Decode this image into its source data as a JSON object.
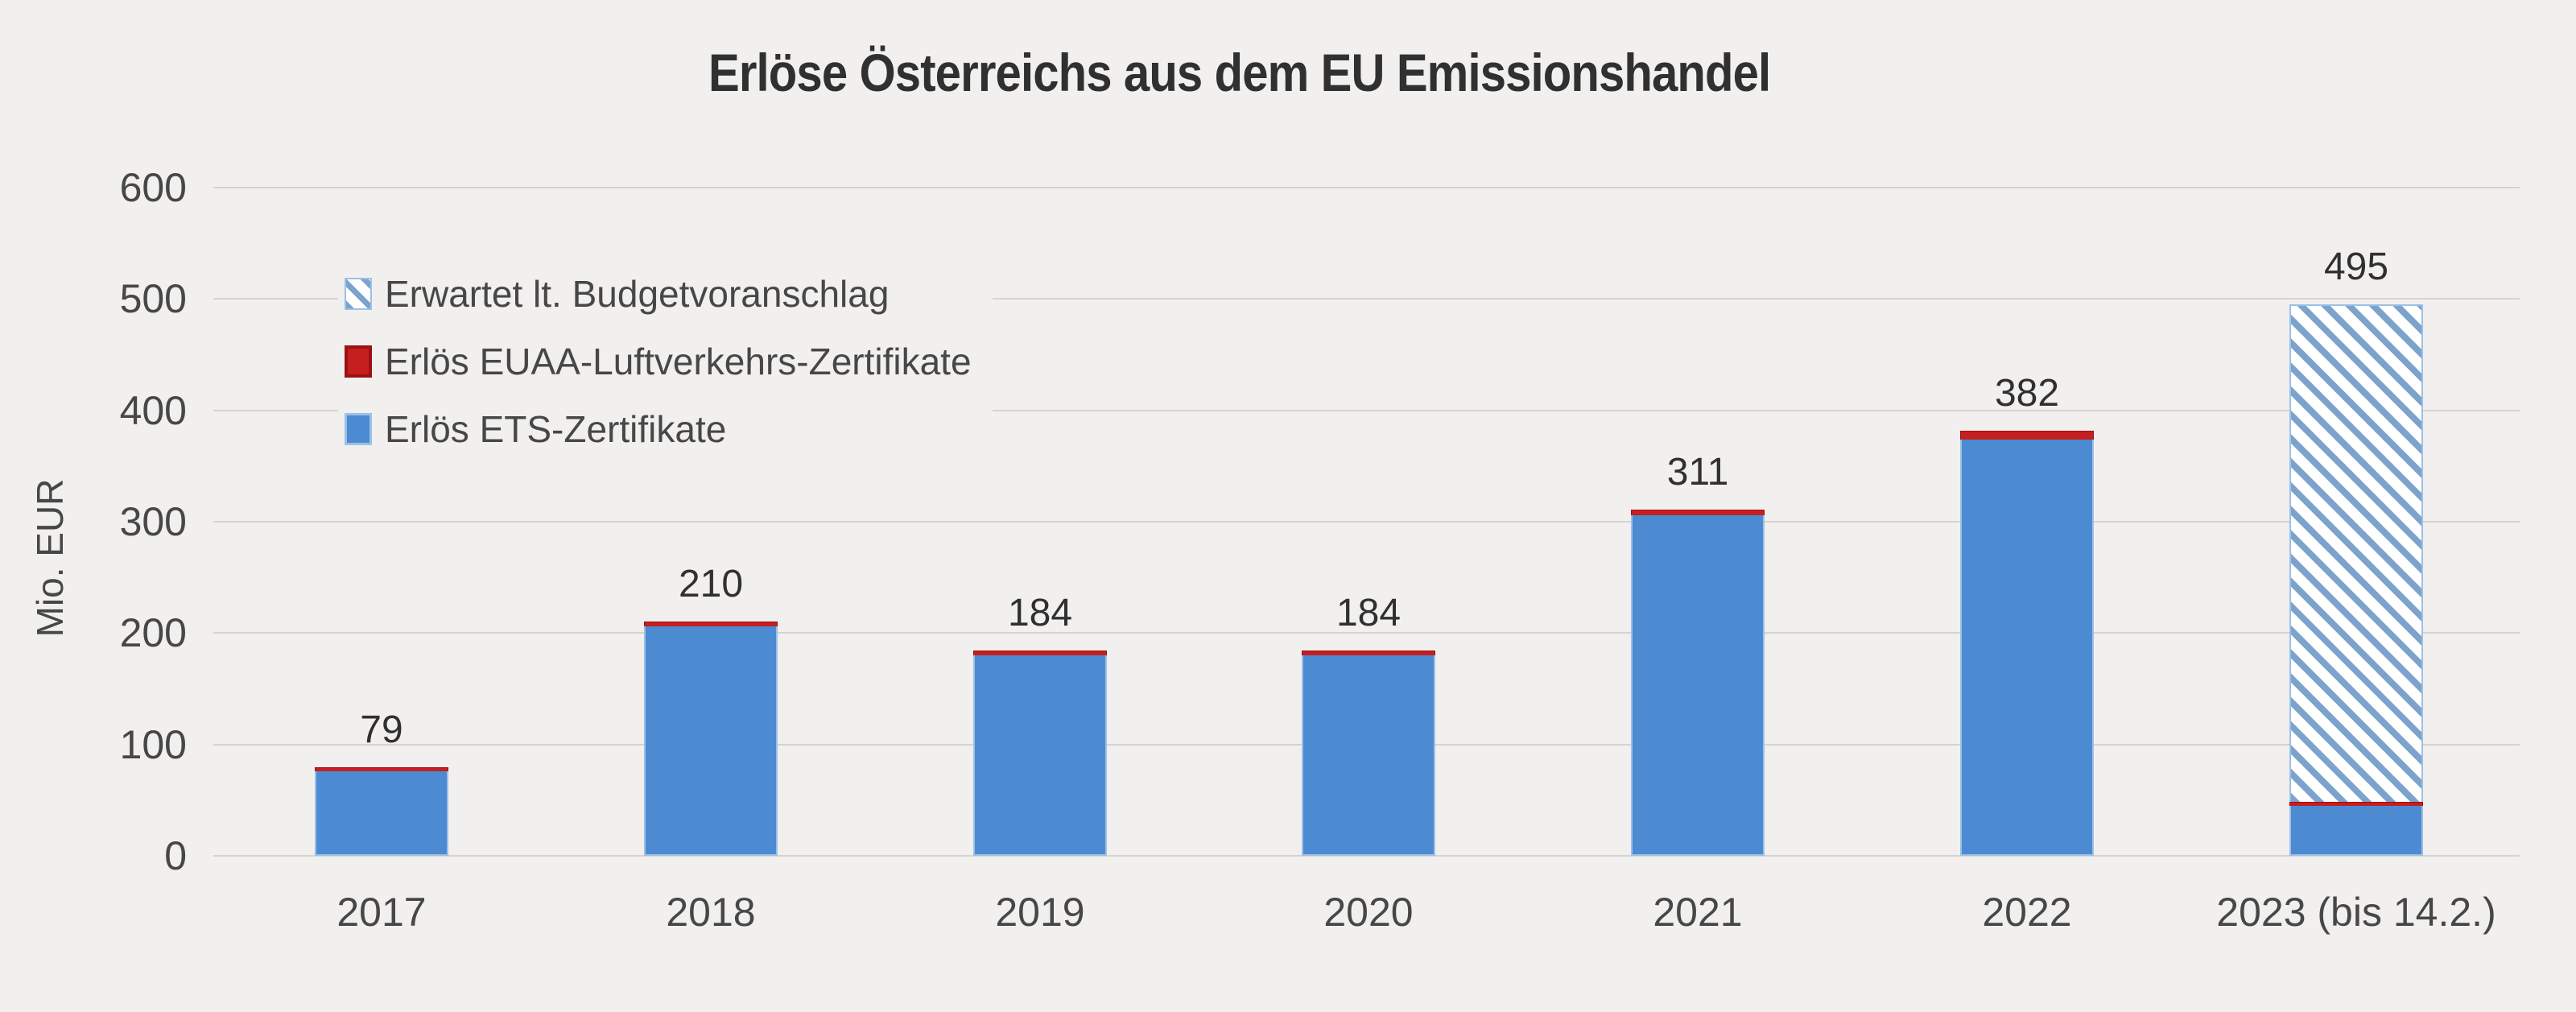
{
  "title": "Erlöse Österreichs aus dem EU Emissionshandel",
  "y_axis": {
    "label": "Mio. EUR",
    "ticks": [
      "600",
      "500",
      "400",
      "300",
      "200",
      "100",
      "0"
    ],
    "tick_values": [
      600,
      500,
      400,
      300,
      200,
      100,
      0
    ]
  },
  "legend": {
    "items": [
      {
        "label": "Erwartet lt. Budgetvoranschlag",
        "swatch": "hatched-blue"
      },
      {
        "label": "Erlös EUAA-Luftverkehrs-Zertifikate",
        "swatch": "red"
      },
      {
        "label": "Erlös ETS-Zertifikate",
        "swatch": "blue"
      }
    ]
  },
  "chart_data": {
    "type": "bar",
    "stacked": true,
    "title": "Erlöse Österreichs aus dem EU Emissionshandel",
    "ylabel": "Mio. EUR",
    "ylim": [
      0,
      600
    ],
    "y_tick_step": 100,
    "grid": true,
    "legend_position": "upper-left",
    "categories": [
      "2017",
      "2018",
      "2019",
      "2020",
      "2021",
      "2022",
      "2023 (bis 14.2.)"
    ],
    "series": [
      {
        "name": "Erlös ETS-Zertifikate",
        "style": "solid-blue",
        "values": [
          76,
          206,
          180,
          180,
          306,
          374,
          45
        ]
      },
      {
        "name": "Erlös EUAA-Luftverkehrs-Zertifikate",
        "style": "solid-red",
        "values": [
          3,
          4,
          4,
          4,
          5,
          8,
          3
        ]
      },
      {
        "name": "Erwartet lt. Budgetvoranschlag",
        "style": "hatched-blue",
        "values": [
          0,
          0,
          0,
          0,
          0,
          0,
          447
        ]
      }
    ],
    "totals": [
      79,
      210,
      184,
      184,
      311,
      382,
      495
    ],
    "total_labels": [
      "79",
      "210",
      "184",
      "184",
      "311",
      "382",
      "495"
    ]
  },
  "colors": {
    "background": "#f1f0ee",
    "gridline": "#d4d3d1",
    "bar_blue": "#4c8bd2",
    "bar_blue_border": "#9cc0e8",
    "bar_red": "#c51f1f",
    "bar_red_border": "#9d1014",
    "hatch_stripe": "#7ba3cb",
    "text": "#474747",
    "text_strong": "#303030"
  }
}
